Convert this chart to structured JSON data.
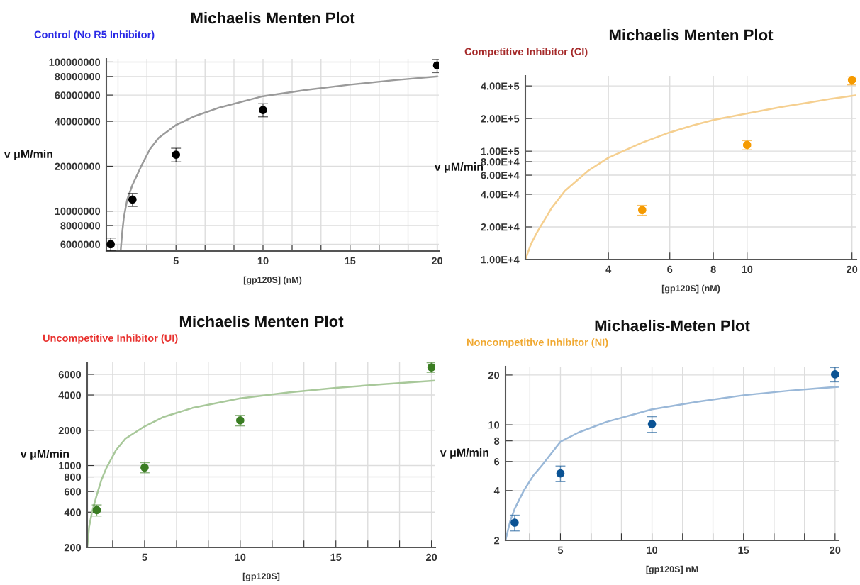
{
  "chart_data": [
    {
      "type": "scatter",
      "title": "Michaelis Menten Plot",
      "subtitle": "Control (No R5 Inhibitor)",
      "xlabel": "[gp120S] (nM)",
      "ylabel": "v μM/min",
      "log": "y",
      "grid": true,
      "xlim": [
        1,
        20.1
      ],
      "xticks": [
        {
          "value": 1.67,
          "label": null
        },
        {
          "value": 3.33,
          "label": null
        },
        5,
        {
          "value": 6.67,
          "label": null
        },
        {
          "value": 8.33,
          "label": null
        },
        10,
        {
          "value": 11.67,
          "label": null
        },
        {
          "value": 13.33,
          "label": null
        },
        15,
        {
          "value": 16.67,
          "label": null
        },
        {
          "value": 18.33,
          "label": null
        },
        20
      ],
      "ylim": [
        5400000,
        105000000
      ],
      "yticks": [
        6000000,
        8000000,
        10000000,
        20000000,
        40000000,
        60000000,
        80000000,
        100000000
      ],
      "series": [
        {
          "type": "line",
          "color": "#9a9a9a",
          "x": [
            1.82,
            1.9,
            2.0,
            2.2,
            2.5,
            3,
            3.5,
            4,
            5,
            6,
            7.5,
            10,
            12.5,
            15,
            17.5,
            20
          ],
          "values": [
            5400000,
            7000000,
            9000000,
            12000000,
            15000000,
            20000000,
            26000000,
            31000000,
            37800000,
            43000000,
            49500000,
            59000000,
            65000000,
            70500000,
            75500000,
            80000000
          ]
        },
        {
          "marker": "circle",
          "color": "#000000",
          "x": [
            1.25,
            2.5,
            5,
            10,
            20
          ],
          "values": [
            6000000,
            11950000,
            23900000,
            47700000,
            94900000
          ],
          "errors": [
            600000,
            1200000,
            2500000,
            4800000,
            10000000
          ]
        }
      ]
    },
    {
      "type": "scatter",
      "title": "Michaelis Menten Plot",
      "subtitle": "Competitive Inhibitor (CI)",
      "xlabel": "[gp120S] (nM)",
      "ylabel": "v μM/min",
      "log": "xy",
      "grid": true,
      "xlim": [
        2.31,
        20.6
      ],
      "xticks": [
        4,
        6,
        8,
        10,
        20
      ],
      "ylim": [
        10000,
        495000
      ],
      "yticks": [
        {
          "value": 10000,
          "label": "1.00E+4"
        },
        {
          "value": 20000,
          "label": "2.00E+4"
        },
        {
          "value": 40000,
          "label": "4.00E+4"
        },
        {
          "value": 60000,
          "label": "6.00E+4"
        },
        {
          "value": 80000,
          "label": "8.00E+4"
        },
        {
          "value": 100000,
          "label": "1.00E+5"
        },
        {
          "value": 200000,
          "label": "2.00E+5"
        },
        {
          "value": 400000,
          "label": "4.00E+5"
        }
      ],
      "series": [
        {
          "type": "line",
          "color": "#f5cf8f",
          "x": [
            2.31,
            2.4,
            2.5,
            2.75,
            3,
            3.5,
            4,
            5,
            6,
            7,
            8,
            10,
            12.5,
            15,
            17.5,
            20.6
          ],
          "values": [
            10000,
            14000,
            18000,
            30000,
            43000,
            66000,
            87000,
            120000,
            149000,
            173000,
            194000,
            223000,
            255000,
            280000,
            305000,
            328000
          ]
        },
        {
          "marker": "circle",
          "color": "#f59a00",
          "x": [
            5,
            10,
            20
          ],
          "values": [
            28600,
            114000,
            454000
          ],
          "errors": [
            3000,
            11000,
            45000
          ]
        }
      ]
    },
    {
      "type": "scatter",
      "title": "Michaelis Menten Plot",
      "subtitle": "Uncompetitive Inhibitor (UI)",
      "xlabel": "[gp120S]",
      "ylabel": "v μM/min",
      "log": "y",
      "grid": true,
      "xlim": [
        2,
        20.2
      ],
      "xticks": [
        {
          "value": 3.33,
          "label": null
        },
        5,
        {
          "value": 6.67,
          "label": null
        },
        {
          "value": 8.33,
          "label": null
        },
        10,
        {
          "value": 11.67,
          "label": null
        },
        {
          "value": 13.33,
          "label": null
        },
        15,
        {
          "value": 16.67,
          "label": null
        },
        {
          "value": 18.33,
          "label": null
        },
        20
      ],
      "ylim": [
        200,
        7600
      ],
      "yticks": [
        200,
        400,
        600,
        800,
        1000,
        2000,
        4000,
        6000
      ],
      "series": [
        {
          "type": "line",
          "color": "#a8c89a",
          "x": [
            2,
            2.1,
            2.25,
            2.5,
            2.75,
            3,
            3.5,
            4,
            5,
            6,
            7.5,
            10,
            12.5,
            15,
            17.5,
            20.2
          ],
          "values": [
            200,
            300,
            400,
            560,
            760,
            950,
            1350,
            1700,
            2160,
            2600,
            3100,
            3750,
            4200,
            4600,
            4950,
            5310
          ]
        },
        {
          "marker": "circle",
          "color": "#3a7d22",
          "x": [
            2.5,
            5,
            10,
            20
          ],
          "values": [
            416,
            962,
            2430,
            6890
          ],
          "errors": [
            45,
            95,
            250,
            650
          ]
        }
      ]
    },
    {
      "type": "scatter",
      "title": "Michaelis-Meten Plot",
      "subtitle": "Noncompetitive Inhibitor (NI)",
      "xlabel": "[gp120S] nM",
      "ylabel": "v μM/min",
      "log": "y",
      "grid": true,
      "xlim": [
        2,
        20.2
      ],
      "xticks": [
        {
          "value": 3.33,
          "label": null
        },
        5,
        {
          "value": 6.67,
          "label": null
        },
        {
          "value": 8.33,
          "label": null
        },
        10,
        {
          "value": 11.67,
          "label": null
        },
        {
          "value": 13.33,
          "label": null
        },
        15,
        {
          "value": 16.67,
          "label": null
        },
        {
          "value": 18.33,
          "label": null
        },
        20
      ],
      "ylim": [
        2,
        22.5
      ],
      "yticks": [
        2,
        4,
        6,
        8,
        10,
        20
      ],
      "series": [
        {
          "type": "line",
          "color": "#9ab8d8",
          "x": [
            2,
            2.25,
            2.5,
            3,
            3.5,
            4,
            5,
            6,
            7.5,
            10,
            12.5,
            15,
            17.5,
            20.2
          ],
          "values": [
            2,
            2.6,
            3.1,
            4.0,
            4.9,
            5.7,
            7.9,
            9.0,
            10.4,
            12.4,
            13.8,
            15.1,
            16.1,
            17.0
          ]
        },
        {
          "marker": "circle",
          "color": "#0b5394",
          "x": [
            2.5,
            5,
            10,
            20
          ],
          "values": [
            2.56,
            5.08,
            10.1,
            20.2
          ],
          "errors": [
            0.28,
            0.55,
            1.1,
            2
          ]
        }
      ]
    }
  ]
}
